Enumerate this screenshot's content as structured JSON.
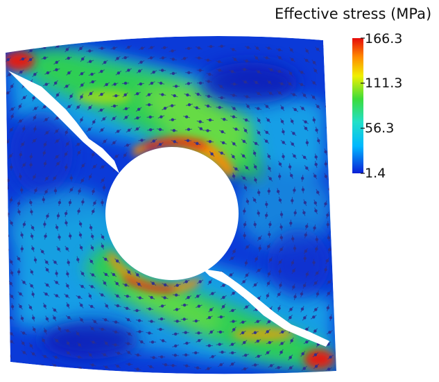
{
  "colorbar": {
    "title": "Effective stress (MPa)",
    "max_label": "166.3",
    "tick_2": "111.3",
    "tick_3": "56.3",
    "min_label": "1.4",
    "colors": [
      "#0a1fd6",
      "#00b7ff",
      "#22e0c8",
      "#3ddc3a",
      "#f0f000",
      "#ff8c00",
      "#e60a0a"
    ]
  },
  "field": {
    "low_color": "#0b3ad8",
    "mid_color": "#14a8e8",
    "high_color": "#2fd24c",
    "peak_color": "#e01a12",
    "arrow_color": "#2b2f8f"
  }
}
